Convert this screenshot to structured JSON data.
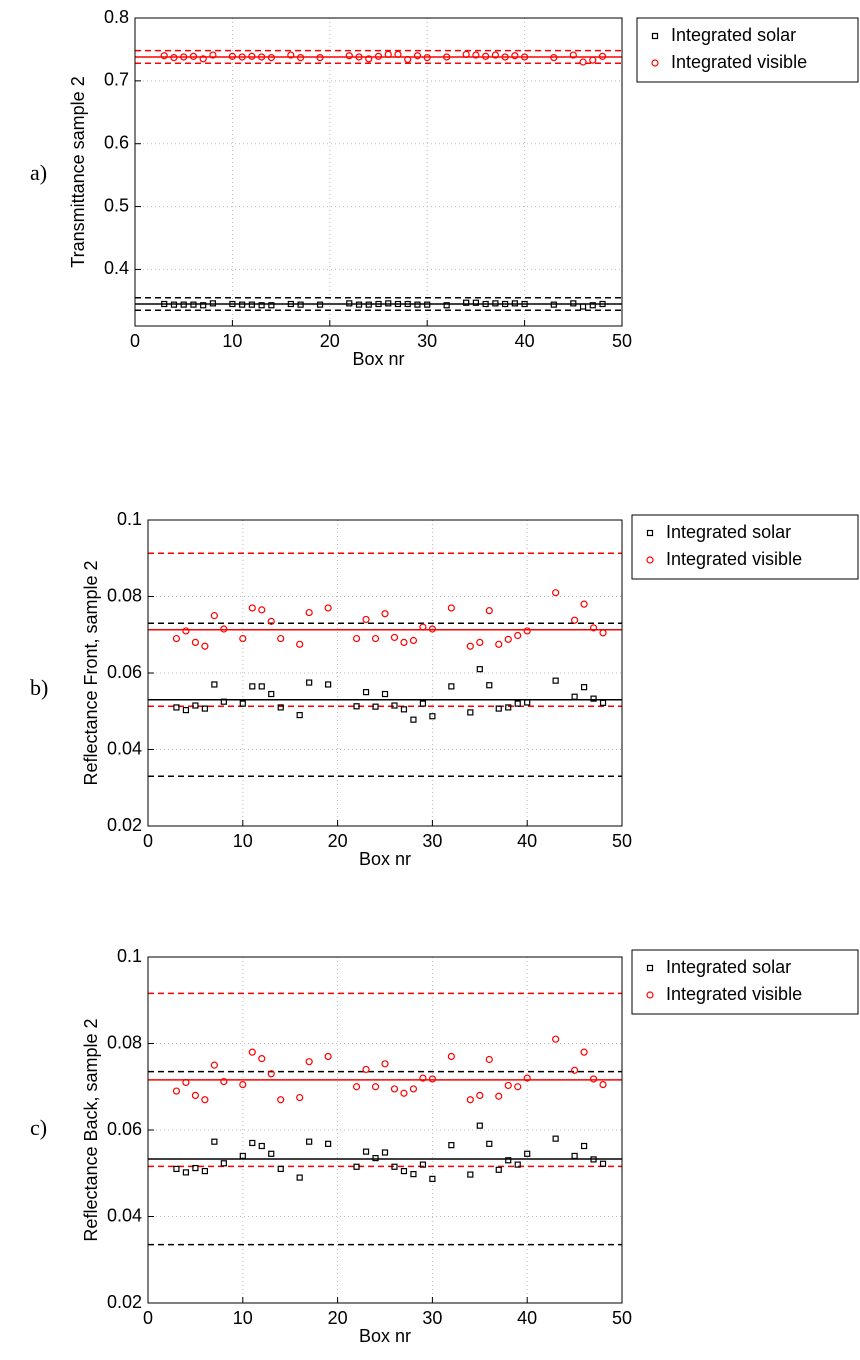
{
  "chart_data": [
    {
      "type": "scatter",
      "label": "a)",
      "ylabel": "Transmittance sample 2",
      "xlabel": "Box nr",
      "x": [
        3,
        4,
        5,
        6,
        7,
        8,
        10,
        11,
        12,
        13,
        14,
        16,
        17,
        19,
        22,
        23,
        24,
        25,
        26,
        27,
        28,
        29,
        30,
        32,
        34,
        35,
        36,
        37,
        38,
        39,
        40,
        43,
        45,
        46,
        47,
        48
      ],
      "series": [
        {
          "name": "Integrated solar",
          "color": "#000000",
          "marker": "square",
          "values": [
            0.345,
            0.344,
            0.344,
            0.344,
            0.343,
            0.346,
            0.345,
            0.344,
            0.344,
            0.343,
            0.343,
            0.345,
            0.344,
            0.344,
            0.346,
            0.344,
            0.344,
            0.345,
            0.346,
            0.345,
            0.345,
            0.344,
            0.344,
            0.343,
            0.347,
            0.347,
            0.345,
            0.346,
            0.345,
            0.346,
            0.345,
            0.344,
            0.346,
            0.341,
            0.343,
            0.345
          ]
        },
        {
          "name": "Integrated visible",
          "color": "#ff0000",
          "marker": "circle",
          "values": [
            0.74,
            0.737,
            0.738,
            0.739,
            0.735,
            0.741,
            0.739,
            0.738,
            0.739,
            0.738,
            0.737,
            0.741,
            0.737,
            0.737,
            0.74,
            0.738,
            0.735,
            0.739,
            0.742,
            0.742,
            0.734,
            0.74,
            0.737,
            0.738,
            0.742,
            0.741,
            0.739,
            0.741,
            0.738,
            0.74,
            0.738,
            0.737,
            0.741,
            0.73,
            0.733,
            0.739
          ]
        }
      ],
      "hlines": [
        {
          "value": 0.345,
          "color": "#000000",
          "dashed": false
        },
        {
          "value": 0.335,
          "color": "#000000",
          "dashed": true
        },
        {
          "value": 0.355,
          "color": "#000000",
          "dashed": true
        },
        {
          "value": 0.738,
          "color": "#ff0000",
          "dashed": false
        },
        {
          "value": 0.728,
          "color": "#ff0000",
          "dashed": true
        },
        {
          "value": 0.748,
          "color": "#ff0000",
          "dashed": true
        }
      ],
      "xlim": [
        0,
        50
      ],
      "xticks": [
        0,
        10,
        20,
        30,
        40,
        50
      ],
      "ylim": [
        0.31,
        0.8
      ],
      "yticks": [
        0.4,
        0.5,
        0.6,
        0.7,
        0.8
      ],
      "grid": true,
      "legend": "outside-right"
    },
    {
      "type": "scatter",
      "label": "b)",
      "ylabel": "Reflectance Front, sample 2",
      "xlabel": "Box nr",
      "x": [
        3,
        4,
        5,
        6,
        7,
        8,
        10,
        11,
        12,
        13,
        14,
        16,
        17,
        19,
        22,
        23,
        24,
        25,
        26,
        27,
        28,
        29,
        30,
        32,
        34,
        35,
        36,
        37,
        38,
        39,
        40,
        43,
        45,
        46,
        47,
        48
      ],
      "series": [
        {
          "name": "Integrated solar",
          "color": "#000000",
          "marker": "square",
          "values": [
            0.051,
            0.0503,
            0.0515,
            0.0507,
            0.057,
            0.0525,
            0.052,
            0.0565,
            0.0565,
            0.0545,
            0.051,
            0.049,
            0.0575,
            0.057,
            0.0513,
            0.055,
            0.0512,
            0.0545,
            0.0515,
            0.0505,
            0.0478,
            0.052,
            0.0487,
            0.0565,
            0.0497,
            0.061,
            0.0568,
            0.0507,
            0.051,
            0.052,
            0.0523,
            0.058,
            0.0538,
            0.0563,
            0.0533,
            0.0522
          ]
        },
        {
          "name": "Integrated visible",
          "color": "#ff0000",
          "marker": "circle",
          "values": [
            0.069,
            0.071,
            0.068,
            0.067,
            0.075,
            0.0715,
            0.069,
            0.077,
            0.0765,
            0.0735,
            0.069,
            0.0675,
            0.0758,
            0.077,
            0.069,
            0.074,
            0.069,
            0.0755,
            0.0693,
            0.068,
            0.0685,
            0.072,
            0.0715,
            0.077,
            0.067,
            0.068,
            0.0763,
            0.0675,
            0.0688,
            0.0698,
            0.071,
            0.081,
            0.0738,
            0.078,
            0.0718,
            0.0705
          ]
        }
      ],
      "hlines": [
        {
          "value": 0.053,
          "color": "#000000",
          "dashed": false
        },
        {
          "value": 0.033,
          "color": "#000000",
          "dashed": true
        },
        {
          "value": 0.073,
          "color": "#000000",
          "dashed": true
        },
        {
          "value": 0.0713,
          "color": "#ff0000",
          "dashed": false
        },
        {
          "value": 0.0513,
          "color": "#ff0000",
          "dashed": true
        },
        {
          "value": 0.0913,
          "color": "#ff0000",
          "dashed": true
        }
      ],
      "xlim": [
        0,
        50
      ],
      "xticks": [
        0,
        10,
        20,
        30,
        40,
        50
      ],
      "ylim": [
        0.02,
        0.1
      ],
      "yticks": [
        0.02,
        0.04,
        0.06,
        0.08,
        0.1
      ],
      "grid": true,
      "legend": "outside-right"
    },
    {
      "type": "scatter",
      "label": "c)",
      "ylabel": "Reflectance Back, sample 2",
      "xlabel": "Box nr",
      "x": [
        3,
        4,
        5,
        6,
        7,
        8,
        10,
        11,
        12,
        13,
        14,
        16,
        17,
        19,
        22,
        23,
        24,
        25,
        26,
        27,
        28,
        29,
        30,
        32,
        34,
        35,
        36,
        37,
        38,
        39,
        40,
        43,
        45,
        46,
        47,
        48
      ],
      "series": [
        {
          "name": "Integrated solar",
          "color": "#000000",
          "marker": "square",
          "values": [
            0.051,
            0.0502,
            0.0512,
            0.0505,
            0.0573,
            0.0523,
            0.054,
            0.057,
            0.0563,
            0.0545,
            0.051,
            0.049,
            0.0573,
            0.0568,
            0.0515,
            0.055,
            0.0535,
            0.0548,
            0.0515,
            0.0505,
            0.0498,
            0.052,
            0.0487,
            0.0565,
            0.0497,
            0.061,
            0.0568,
            0.0508,
            0.053,
            0.052,
            0.0545,
            0.058,
            0.054,
            0.0563,
            0.0532,
            0.0522
          ]
        },
        {
          "name": "Integrated visible",
          "color": "#ff0000",
          "marker": "circle",
          "values": [
            0.069,
            0.071,
            0.068,
            0.067,
            0.075,
            0.0712,
            0.0705,
            0.078,
            0.0765,
            0.073,
            0.067,
            0.0675,
            0.0758,
            0.077,
            0.07,
            0.074,
            0.07,
            0.0753,
            0.0695,
            0.0685,
            0.0695,
            0.072,
            0.0718,
            0.077,
            0.067,
            0.068,
            0.0763,
            0.0678,
            0.0703,
            0.07,
            0.072,
            0.081,
            0.0738,
            0.078,
            0.0718,
            0.0705
          ]
        }
      ],
      "hlines": [
        {
          "value": 0.0533,
          "color": "#000000",
          "dashed": false
        },
        {
          "value": 0.0335,
          "color": "#000000",
          "dashed": true
        },
        {
          "value": 0.0735,
          "color": "#000000",
          "dashed": true
        },
        {
          "value": 0.0716,
          "color": "#ff0000",
          "dashed": false
        },
        {
          "value": 0.0516,
          "color": "#ff0000",
          "dashed": true
        },
        {
          "value": 0.0916,
          "color": "#ff0000",
          "dashed": true
        }
      ],
      "xlim": [
        0,
        50
      ],
      "xticks": [
        0,
        10,
        20,
        30,
        40,
        50
      ],
      "ylim": [
        0.02,
        0.1
      ],
      "yticks": [
        0.02,
        0.04,
        0.06,
        0.08,
        0.1
      ],
      "grid": true,
      "legend": "outside-right"
    }
  ]
}
